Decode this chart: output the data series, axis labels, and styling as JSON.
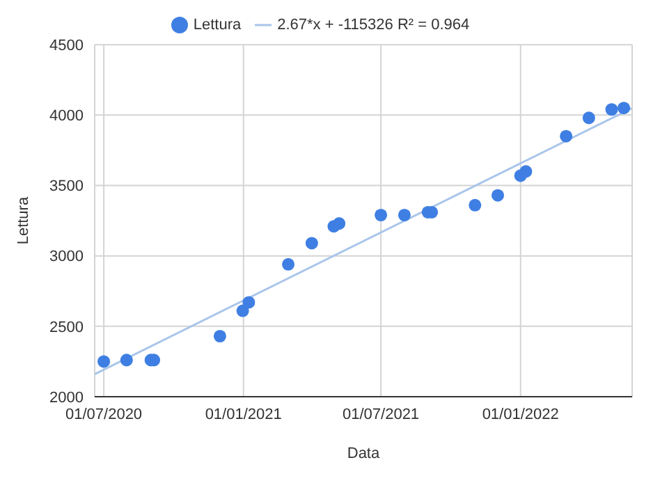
{
  "chart_data": {
    "type": "scatter",
    "xlabel": "Data",
    "ylabel": "Lettura",
    "xlim": [
      "2020-06-19",
      "2022-05-28"
    ],
    "xticks": [
      {
        "value": "2020-07-01",
        "label": "01/07/2020"
      },
      {
        "value": "2021-01-01",
        "label": "01/01/2021"
      },
      {
        "value": "2021-07-01",
        "label": "01/07/2021"
      },
      {
        "value": "2022-01-01",
        "label": "01/01/2022"
      }
    ],
    "ylim": [
      2000,
      4500
    ],
    "yticks": [
      2000,
      2500,
      3000,
      3500,
      4000,
      4500
    ],
    "grid": true,
    "legend": "top",
    "marker": "circle",
    "series": [
      {
        "name": "Lettura",
        "color": "#3f7fe3",
        "x": [
          "2020-07-01",
          "2020-07-31",
          "2020-09-01",
          "2020-09-05",
          "2020-12-01",
          "2020-12-31",
          "2021-01-08",
          "2021-03-01",
          "2021-04-01",
          "2021-04-30",
          "2021-05-07",
          "2021-07-01",
          "2021-08-01",
          "2021-09-01",
          "2021-09-06",
          "2021-11-02",
          "2021-12-02",
          "2022-01-01",
          "2022-01-08",
          "2022-03-02",
          "2022-04-01",
          "2022-05-01",
          "2022-05-17"
        ],
        "values": [
          2250,
          2260,
          2260,
          2260,
          2430,
          2610,
          2670,
          2940,
          3090,
          3210,
          3230,
          3290,
          3290,
          3310,
          3310,
          3360,
          3430,
          3570,
          3600,
          3850,
          3980,
          4040,
          4050
        ]
      },
      {
        "name": "2.67*x + -115326 R² = 0.964",
        "type": "line",
        "color": "#a9c5ea",
        "marker": "none",
        "line_style": "solid",
        "x": [
          "2020-06-19",
          "2022-05-28"
        ],
        "values": [
          2160,
          4050
        ]
      }
    ]
  }
}
